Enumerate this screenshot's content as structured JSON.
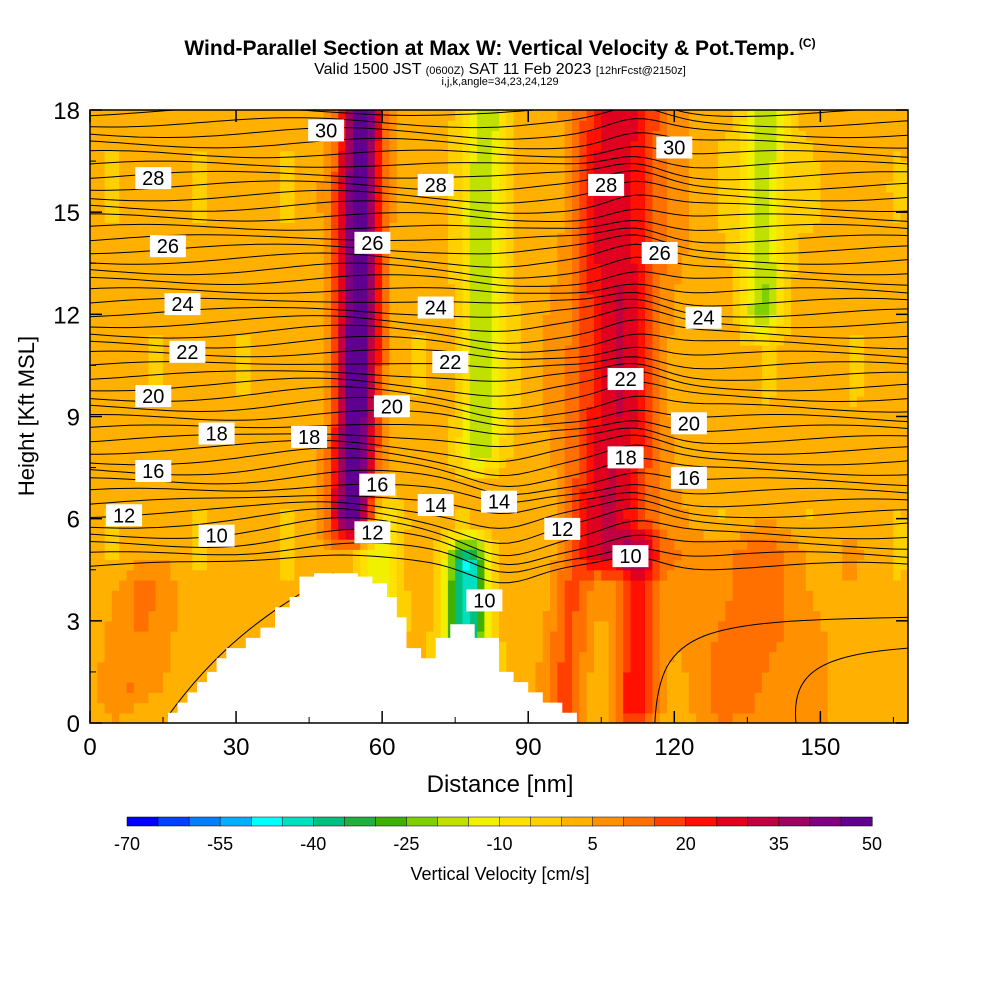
{
  "header": {
    "title": "Wind-Parallel Section at Max W: Vertical Velocity & Pot.Temp.",
    "copyright": "(C)",
    "valid_prefix": "Valid 1500 JST",
    "valid_utc": "(0600Z)",
    "valid_date": "SAT 11 Feb 2023",
    "forecast": "[12hrFcst@2150z]",
    "params": "i,j,k,angle=34,23,24,129"
  },
  "chart_data": {
    "type": "heatmap",
    "title": "Wind-Parallel Section at Max W: Vertical Velocity & Pot.Temp.",
    "xlabel": "Distance [nm]",
    "ylabel": "Height [Kft MSL]",
    "xlim": [
      0,
      168
    ],
    "ylim": [
      0,
      18
    ],
    "x_ticks": [
      0,
      30,
      60,
      90,
      120,
      150
    ],
    "y_ticks": [
      0,
      3,
      6,
      9,
      12,
      15,
      18
    ],
    "colorbar": {
      "label": "Vertical Velocity [cm/s]",
      "tick_labels": [
        "-70",
        "-55",
        "-40",
        "-25",
        "-10",
        "5",
        "20",
        "35",
        "50"
      ],
      "min": -70,
      "max": 50,
      "colors": [
        "#0000ff",
        "#0040ff",
        "#0080ff",
        "#00b0ff",
        "#00ffff",
        "#00e0c0",
        "#00c080",
        "#20b040",
        "#40b000",
        "#80d000",
        "#c0e000",
        "#f0f000",
        "#ffe000",
        "#ffd000",
        "#ffb000",
        "#ff9000",
        "#ff7000",
        "#ff4000",
        "#ff1000",
        "#e00020",
        "#c00040",
        "#a00060",
        "#800080",
        "#600090"
      ]
    },
    "terrain": [
      [
        16,
        0
      ],
      [
        16,
        0.3
      ],
      [
        18,
        0.3
      ],
      [
        18,
        0.6
      ],
      [
        20,
        0.6
      ],
      [
        20,
        0.9
      ],
      [
        22,
        0.9
      ],
      [
        22,
        1.2
      ],
      [
        24,
        1.2
      ],
      [
        24,
        1.5
      ],
      [
        26,
        1.5
      ],
      [
        26,
        1.9
      ],
      [
        28,
        1.9
      ],
      [
        28,
        2.2
      ],
      [
        32,
        2.2
      ],
      [
        32,
        2.5
      ],
      [
        35,
        2.5
      ],
      [
        35,
        2.8
      ],
      [
        38,
        2.8
      ],
      [
        38,
        3.4
      ],
      [
        41,
        3.4
      ],
      [
        41,
        3.7
      ],
      [
        43,
        3.7
      ],
      [
        43,
        4.3
      ],
      [
        46,
        4.3
      ],
      [
        46,
        4.4
      ],
      [
        55,
        4.4
      ],
      [
        55,
        4.3
      ],
      [
        58,
        4.3
      ],
      [
        58,
        4.1
      ],
      [
        61,
        4.1
      ],
      [
        61,
        3.7
      ],
      [
        63,
        3.7
      ],
      [
        63,
        3.1
      ],
      [
        65,
        3.1
      ],
      [
        65,
        2.2
      ],
      [
        68,
        2.2
      ],
      [
        68,
        1.9
      ],
      [
        71,
        1.9
      ],
      [
        71,
        2.5
      ],
      [
        74,
        2.5
      ],
      [
        74,
        2.9
      ],
      [
        79,
        2.9
      ],
      [
        79,
        2.5
      ],
      [
        84,
        2.5
      ],
      [
        84,
        1.5
      ],
      [
        87,
        1.5
      ],
      [
        87,
        1.2
      ],
      [
        90,
        1.2
      ],
      [
        90,
        0.9
      ],
      [
        93,
        0.9
      ],
      [
        93,
        0.6
      ],
      [
        97,
        0.6
      ],
      [
        97,
        0.3
      ],
      [
        100,
        0.3
      ],
      [
        100,
        0
      ]
    ],
    "w_features": [
      {
        "x": 54,
        "y0": 6,
        "y1": 18,
        "w": 50,
        "halfwidth": 3
      },
      {
        "x": 107,
        "y0": 5,
        "y1": 18,
        "w": 28,
        "halfwidth": 6
      },
      {
        "x": 80,
        "y0": 8,
        "y1": 18,
        "w": -22,
        "halfwidth": 3
      },
      {
        "x": 138,
        "y0": 12,
        "y1": 18,
        "w": -22,
        "halfwidth": 3
      },
      {
        "x": 112,
        "y0": 0.5,
        "y1": 5,
        "w": 20,
        "halfwidth": 3
      },
      {
        "x": 98,
        "y0": 0.3,
        "y1": 4,
        "w": 14,
        "halfwidth": 3
      },
      {
        "x": 77,
        "y0": 1.2,
        "y1": 4.8,
        "w": -45,
        "halfwidth": 3
      },
      {
        "x": 60,
        "y0": 3.0,
        "y1": 6.0,
        "w": -14,
        "halfwidth": 3
      },
      {
        "x": 10,
        "y0": 1.0,
        "y1": 4.0,
        "w": 8,
        "halfwidth": 5
      },
      {
        "x": 135,
        "y0": 0.5,
        "y1": 5.0,
        "w": 10,
        "halfwidth": 10
      }
    ],
    "theta_labels": [
      {
        "text": "30",
        "x": 48.5,
        "y": 17.4
      },
      {
        "text": "28",
        "x": 13,
        "y": 16.0
      },
      {
        "text": "28",
        "x": 71,
        "y": 15.8
      },
      {
        "text": "28",
        "x": 106,
        "y": 15.8
      },
      {
        "text": "30",
        "x": 120,
        "y": 16.9
      },
      {
        "text": "26",
        "x": 16,
        "y": 14.0
      },
      {
        "text": "26",
        "x": 58,
        "y": 14.1
      },
      {
        "text": "26",
        "x": 117,
        "y": 13.8
      },
      {
        "text": "24",
        "x": 19,
        "y": 12.3
      },
      {
        "text": "24",
        "x": 71,
        "y": 12.2
      },
      {
        "text": "24",
        "x": 126,
        "y": 11.9
      },
      {
        "text": "22",
        "x": 20,
        "y": 10.9
      },
      {
        "text": "22",
        "x": 74,
        "y": 10.6
      },
      {
        "text": "22",
        "x": 110,
        "y": 10.1
      },
      {
        "text": "20",
        "x": 13,
        "y": 9.6
      },
      {
        "text": "20",
        "x": 62,
        "y": 9.3
      },
      {
        "text": "20",
        "x": 123,
        "y": 8.8
      },
      {
        "text": "18",
        "x": 26,
        "y": 8.5
      },
      {
        "text": "18",
        "x": 45,
        "y": 8.4
      },
      {
        "text": "18",
        "x": 110,
        "y": 7.8
      },
      {
        "text": "16",
        "x": 13,
        "y": 7.4
      },
      {
        "text": "16",
        "x": 59,
        "y": 7.0
      },
      {
        "text": "16",
        "x": 123,
        "y": 7.2
      },
      {
        "text": "14",
        "x": 71,
        "y": 6.4
      },
      {
        "text": "14",
        "x": 84,
        "y": 6.5
      },
      {
        "text": "12",
        "x": 7,
        "y": 6.1
      },
      {
        "text": "12",
        "x": 58,
        "y": 5.6
      },
      {
        "text": "12",
        "x": 97,
        "y": 5.7
      },
      {
        "text": "10",
        "x": 26,
        "y": 5.5
      },
      {
        "text": "10",
        "x": 111,
        "y": 4.9
      },
      {
        "text": "10",
        "x": 81,
        "y": 3.6
      }
    ]
  }
}
